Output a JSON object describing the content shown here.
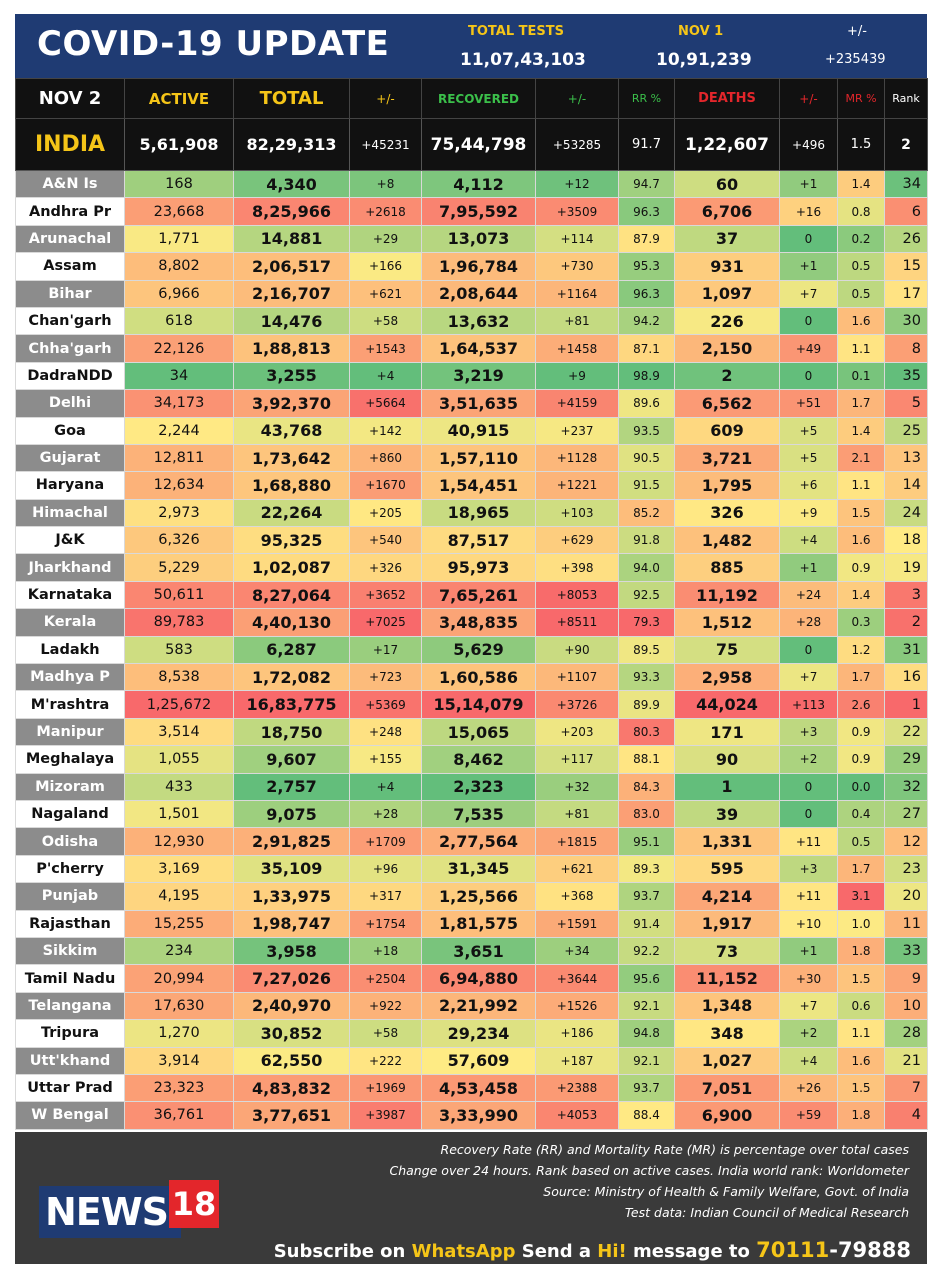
{
  "header": {
    "title": "COVID-19 UPDATE",
    "total_tests_label": "TOTAL TESTS",
    "total_tests": "11,07,43,103",
    "date_label": "NOV 1",
    "date_tests": "10,91,239",
    "change_label": "+/-",
    "change": "+235439"
  },
  "columns": {
    "date": "NOV 2",
    "active": "ACTIVE",
    "total": "TOTAL",
    "total_change": "+/-",
    "recovered": "RECOVERED",
    "recovered_change": "+/-",
    "rr": "RR %",
    "deaths": "DEATHS",
    "deaths_change": "+/-",
    "mr": "MR %",
    "rank": "Rank"
  },
  "colors": {
    "header_bg": "#1f3b73",
    "yellow": "#f5c518",
    "green_label": "#3bbf4a",
    "red_label": "#e3262b",
    "grey_state": "#8c8c8c"
  },
  "india": [
    "INDIA",
    "5,61,908",
    "82,29,313",
    "+45231",
    "75,44,798",
    "+53285",
    "91.7",
    "1,22,607",
    "+496",
    "1.5",
    "2"
  ],
  "rows": [
    [
      "A&N Is",
      "168",
      "4,340",
      "+8",
      "4,112",
      "+12",
      "94.7",
      "60",
      "+1",
      "1.4",
      "34"
    ],
    [
      "Andhra Pr",
      "23,668",
      "8,25,966",
      "+2618",
      "7,95,592",
      "+3509",
      "96.3",
      "6,706",
      "+16",
      "0.8",
      "6"
    ],
    [
      "Arunachal",
      "1,771",
      "14,881",
      "+29",
      "13,073",
      "+114",
      "87.9",
      "37",
      "0",
      "0.2",
      "26"
    ],
    [
      "Assam",
      "8,802",
      "2,06,517",
      "+166",
      "1,96,784",
      "+730",
      "95.3",
      "931",
      "+1",
      "0.5",
      "15"
    ],
    [
      "Bihar",
      "6,966",
      "2,16,707",
      "+621",
      "2,08,644",
      "+1164",
      "96.3",
      "1,097",
      "+7",
      "0.5",
      "17"
    ],
    [
      "Chan'garh",
      "618",
      "14,476",
      "+58",
      "13,632",
      "+81",
      "94.2",
      "226",
      "0",
      "1.6",
      "30"
    ],
    [
      "Chha'garh",
      "22,126",
      "1,88,813",
      "+1543",
      "1,64,537",
      "+1458",
      "87.1",
      "2,150",
      "+49",
      "1.1",
      "8"
    ],
    [
      "DadraNDD",
      "34",
      "3,255",
      "+4",
      "3,219",
      "+9",
      "98.9",
      "2",
      "0",
      "0.1",
      "35"
    ],
    [
      "Delhi",
      "34,173",
      "3,92,370",
      "+5664",
      "3,51,635",
      "+4159",
      "89.6",
      "6,562",
      "+51",
      "1.7",
      "5"
    ],
    [
      "Goa",
      "2,244",
      "43,768",
      "+142",
      "40,915",
      "+237",
      "93.5",
      "609",
      "+5",
      "1.4",
      "25"
    ],
    [
      "Gujarat",
      "12,811",
      "1,73,642",
      "+860",
      "1,57,110",
      "+1128",
      "90.5",
      "3,721",
      "+5",
      "2.1",
      "13"
    ],
    [
      "Haryana",
      "12,634",
      "1,68,880",
      "+1670",
      "1,54,451",
      "+1221",
      "91.5",
      "1,795",
      "+6",
      "1.1",
      "14"
    ],
    [
      "Himachal",
      "2,973",
      "22,264",
      "+205",
      "18,965",
      "+103",
      "85.2",
      "326",
      "+9",
      "1.5",
      "24"
    ],
    [
      "J&K",
      "6,326",
      "95,325",
      "+540",
      "87,517",
      "+629",
      "91.8",
      "1,482",
      "+4",
      "1.6",
      "18"
    ],
    [
      "Jharkhand",
      "5,229",
      "1,02,087",
      "+326",
      "95,973",
      "+398",
      "94.0",
      "885",
      "+1",
      "0.9",
      "19"
    ],
    [
      "Karnataka",
      "50,611",
      "8,27,064",
      "+3652",
      "7,65,261",
      "+8053",
      "92.5",
      "11,192",
      "+24",
      "1.4",
      "3"
    ],
    [
      "Kerala",
      "89,783",
      "4,40,130",
      "+7025",
      "3,48,835",
      "+8511",
      "79.3",
      "1,512",
      "+28",
      "0.3",
      "2"
    ],
    [
      "Ladakh",
      "583",
      "6,287",
      "+17",
      "5,629",
      "+90",
      "89.5",
      "75",
      "0",
      "1.2",
      "31"
    ],
    [
      "Madhya P",
      "8,538",
      "1,72,082",
      "+723",
      "1,60,586",
      "+1107",
      "93.3",
      "2,958",
      "+7",
      "1.7",
      "16"
    ],
    [
      "M'rashtra",
      "1,25,672",
      "16,83,775",
      "+5369",
      "15,14,079",
      "+3726",
      "89.9",
      "44,024",
      "+113",
      "2.6",
      "1"
    ],
    [
      "Manipur",
      "3,514",
      "18,750",
      "+248",
      "15,065",
      "+203",
      "80.3",
      "171",
      "+3",
      "0.9",
      "22"
    ],
    [
      "Meghalaya",
      "1,055",
      "9,607",
      "+155",
      "8,462",
      "+117",
      "88.1",
      "90",
      "+2",
      "0.9",
      "29"
    ],
    [
      "Mizoram",
      "433",
      "2,757",
      "+4",
      "2,323",
      "+32",
      "84.3",
      "1",
      "0",
      "0.0",
      "32"
    ],
    [
      "Nagaland",
      "1,501",
      "9,075",
      "+28",
      "7,535",
      "+81",
      "83.0",
      "39",
      "0",
      "0.4",
      "27"
    ],
    [
      "Odisha",
      "12,930",
      "2,91,825",
      "+1709",
      "2,77,564",
      "+1815",
      "95.1",
      "1,331",
      "+11",
      "0.5",
      "12"
    ],
    [
      "P'cherry",
      "3,169",
      "35,109",
      "+96",
      "31,345",
      "+621",
      "89.3",
      "595",
      "+3",
      "1.7",
      "23"
    ],
    [
      "Punjab",
      "4,195",
      "1,33,975",
      "+317",
      "1,25,566",
      "+368",
      "93.7",
      "4,214",
      "+11",
      "3.1",
      "20"
    ],
    [
      "Rajasthan",
      "15,255",
      "1,98,747",
      "+1754",
      "1,81,575",
      "+1591",
      "91.4",
      "1,917",
      "+10",
      "1.0",
      "11"
    ],
    [
      "Sikkim",
      "234",
      "3,958",
      "+18",
      "3,651",
      "+34",
      "92.2",
      "73",
      "+1",
      "1.8",
      "33"
    ],
    [
      "Tamil Nadu",
      "20,994",
      "7,27,026",
      "+2504",
      "6,94,880",
      "+3644",
      "95.6",
      "11,152",
      "+30",
      "1.5",
      "9"
    ],
    [
      "Telangana",
      "17,630",
      "2,40,970",
      "+922",
      "2,21,992",
      "+1526",
      "92.1",
      "1,348",
      "+7",
      "0.6",
      "10"
    ],
    [
      "Tripura",
      "1,270",
      "30,852",
      "+58",
      "29,234",
      "+186",
      "94.8",
      "348",
      "+2",
      "1.1",
      "28"
    ],
    [
      "Utt'khand",
      "3,914",
      "62,550",
      "+222",
      "57,609",
      "+187",
      "92.1",
      "1,027",
      "+4",
      "1.6",
      "21"
    ],
    [
      "Uttar Prad",
      "23,323",
      "4,83,832",
      "+1969",
      "4,53,458",
      "+2388",
      "93.7",
      "7,051",
      "+26",
      "1.5",
      "7"
    ],
    [
      "W Bengal",
      "36,761",
      "3,77,651",
      "+3987",
      "3,33,990",
      "+4053",
      "88.4",
      "6,900",
      "+59",
      "1.8",
      "4"
    ]
  ],
  "footer": {
    "notes": [
      "Recovery Rate (RR) and Mortality Rate (MR) is percentage over total cases",
      "Change over 24 hours. Rank based on active cases. India world rank: Worldometer",
      "Source: Ministry of Health & Family Welfare, Govt. of India",
      "Test data: Indian Council of Medical Research"
    ],
    "logo_text": "NEWS",
    "logo_number": "18",
    "subscribe_1": "Subscribe on ",
    "subscribe_whatsapp": "WhatsApp",
    "subscribe_2": " Send a ",
    "subscribe_hi": "Hi!",
    "subscribe_3": " message to ",
    "phone_1": "70111",
    "phone_sep": "-",
    "phone_2": "79888"
  }
}
